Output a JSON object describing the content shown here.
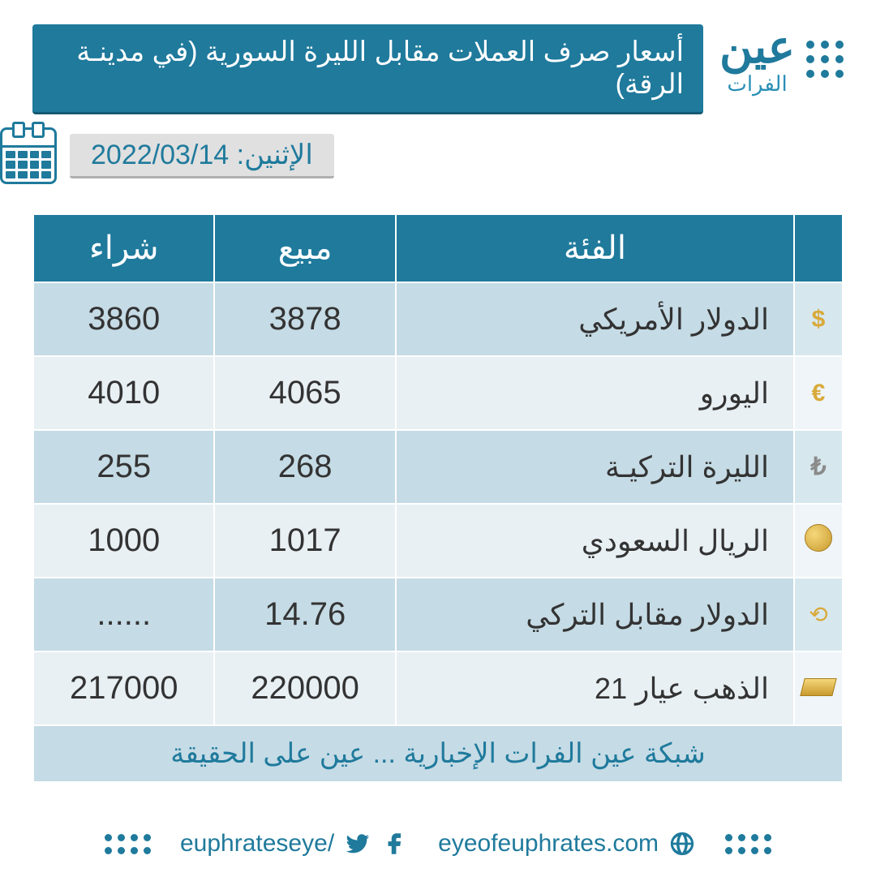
{
  "brand": {
    "main": "عين",
    "sub": "الفرات"
  },
  "title": "أسعار صرف العملات مقابل الليرة السورية (في مدينـة الرقة)",
  "date_label": "الإثنين: 2022/03/14",
  "columns": {
    "category": "الفئة",
    "sell": "مبيع",
    "buy": "شراء"
  },
  "rows": [
    {
      "name": "الدولار الأمريكي",
      "sell": "3878",
      "buy": "3860",
      "icon": "dollar"
    },
    {
      "name": "اليورو",
      "sell": "4065",
      "buy": "4010",
      "icon": "euro"
    },
    {
      "name": "الليرة التركيـة",
      "sell": "268",
      "buy": "255",
      "icon": "lira"
    },
    {
      "name": "الريال السعودي",
      "sell": "1017",
      "buy": "1000",
      "icon": "coin"
    },
    {
      "name": "الدولار مقابل التركي",
      "sell": "14.76",
      "buy": "......",
      "icon": "exchange"
    },
    {
      "name": "الذهب عيار 21",
      "sell": "220000",
      "buy": "217000",
      "icon": "gold"
    }
  ],
  "footer_tagline": "شبكة عين الفرات الإخبارية ... عين على الحقيقة",
  "website": "eyeofeuphrates.com",
  "social_handle": "/euphrateseye",
  "colors": {
    "primary": "#1f7a9c",
    "row_light": "#c5dbe5",
    "row_dark": "#e8f0f4",
    "date_bg": "#e0e0e0"
  }
}
